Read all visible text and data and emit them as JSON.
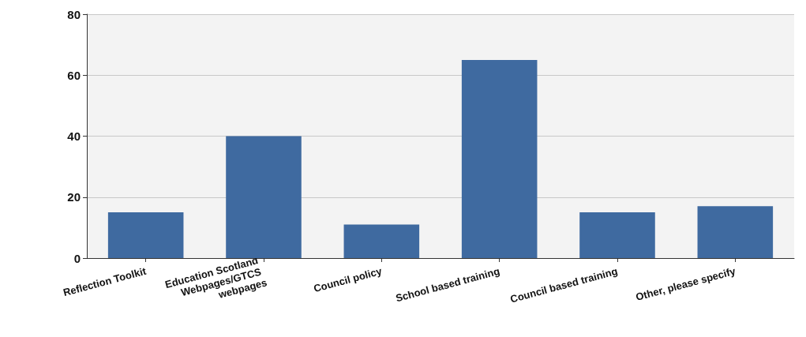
{
  "chart_data": {
    "type": "bar",
    "categories": [
      "Reflection Toolkit",
      "Education Scotland Webpages/GTCS webpages",
      "Council policy",
      "School based training",
      "Council based training",
      "Other, please specify"
    ],
    "values": [
      15,
      40,
      11,
      65,
      15,
      17
    ],
    "color": "#3f6aa0",
    "ylim": [
      0,
      80
    ],
    "yticks": [
      0,
      20,
      40,
      60,
      80
    ],
    "grid": "y"
  }
}
